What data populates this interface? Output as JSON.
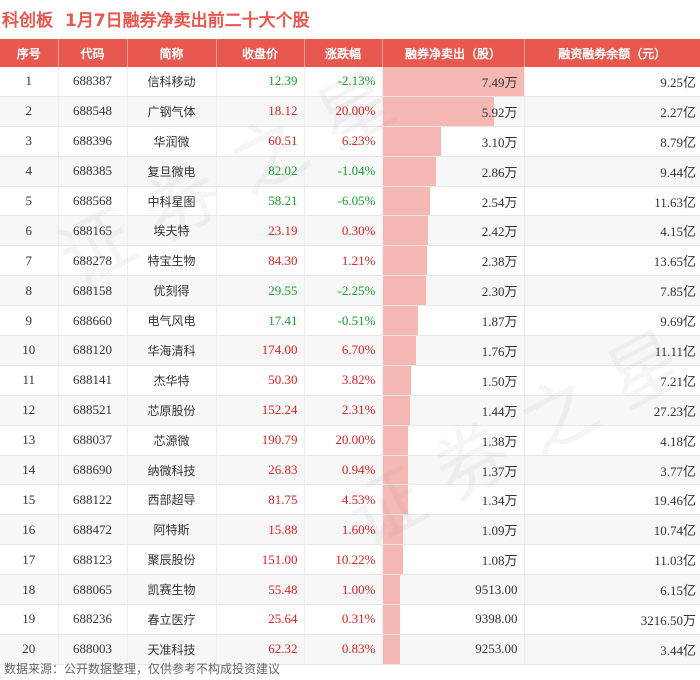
{
  "header": {
    "brand": "科创板",
    "title": "1月7日融券净卖出前二十大个股"
  },
  "columns": [
    "序号",
    "代码",
    "简称",
    "收盘价",
    "涨跌幅",
    "融券净卖出（股）",
    "融资融券余额（元）"
  ],
  "rows": [
    {
      "idx": "1",
      "code": "688387",
      "name": "信科移动",
      "price": "12.39",
      "chg": "-2.13%",
      "net": "7.49万",
      "net_value": 74900,
      "bal": "9.25亿"
    },
    {
      "idx": "2",
      "code": "688548",
      "name": "广钢气体",
      "price": "18.12",
      "chg": "20.00%",
      "net": "5.92万",
      "net_value": 59200,
      "bal": "2.27亿"
    },
    {
      "idx": "3",
      "code": "688396",
      "name": "华润微",
      "price": "60.51",
      "chg": "6.23%",
      "net": "3.10万",
      "net_value": 31000,
      "bal": "8.79亿"
    },
    {
      "idx": "4",
      "code": "688385",
      "name": "复旦微电",
      "price": "82.02",
      "chg": "-1.04%",
      "net": "2.86万",
      "net_value": 28600,
      "bal": "9.44亿"
    },
    {
      "idx": "5",
      "code": "688568",
      "name": "中科星图",
      "price": "58.21",
      "chg": "-6.05%",
      "net": "2.54万",
      "net_value": 25400,
      "bal": "11.63亿"
    },
    {
      "idx": "6",
      "code": "688165",
      "name": "埃夫特",
      "price": "23.19",
      "chg": "0.30%",
      "net": "2.42万",
      "net_value": 24200,
      "bal": "4.15亿"
    },
    {
      "idx": "7",
      "code": "688278",
      "name": "特宝生物",
      "price": "84.30",
      "chg": "1.21%",
      "net": "2.38万",
      "net_value": 23800,
      "bal": "13.65亿"
    },
    {
      "idx": "8",
      "code": "688158",
      "name": "优刻得",
      "price": "29.55",
      "chg": "-2.25%",
      "net": "2.30万",
      "net_value": 23000,
      "bal": "7.85亿"
    },
    {
      "idx": "9",
      "code": "688660",
      "name": "电气风电",
      "price": "17.41",
      "chg": "-0.51%",
      "net": "1.87万",
      "net_value": 18700,
      "bal": "9.69亿"
    },
    {
      "idx": "10",
      "code": "688120",
      "name": "华海清科",
      "price": "174.00",
      "chg": "6.70%",
      "net": "1.76万",
      "net_value": 17600,
      "bal": "11.11亿"
    },
    {
      "idx": "11",
      "code": "688141",
      "name": "杰华特",
      "price": "50.30",
      "chg": "3.82%",
      "net": "1.50万",
      "net_value": 15000,
      "bal": "7.21亿"
    },
    {
      "idx": "12",
      "code": "688521",
      "name": "芯原股份",
      "price": "152.24",
      "chg": "2.31%",
      "net": "1.44万",
      "net_value": 14400,
      "bal": "27.23亿"
    },
    {
      "idx": "13",
      "code": "688037",
      "name": "芯源微",
      "price": "190.79",
      "chg": "20.00%",
      "net": "1.38万",
      "net_value": 13800,
      "bal": "4.18亿"
    },
    {
      "idx": "14",
      "code": "688690",
      "name": "纳微科技",
      "price": "26.83",
      "chg": "0.94%",
      "net": "1.37万",
      "net_value": 13700,
      "bal": "3.77亿"
    },
    {
      "idx": "15",
      "code": "688122",
      "name": "西部超导",
      "price": "81.75",
      "chg": "4.53%",
      "net": "1.34万",
      "net_value": 13400,
      "bal": "19.46亿"
    },
    {
      "idx": "16",
      "code": "688472",
      "name": "阿特斯",
      "price": "15.88",
      "chg": "1.60%",
      "net": "1.09万",
      "net_value": 10900,
      "bal": "10.74亿"
    },
    {
      "idx": "17",
      "code": "688123",
      "name": "聚辰股份",
      "price": "151.00",
      "chg": "10.22%",
      "net": "1.08万",
      "net_value": 10800,
      "bal": "11.03亿"
    },
    {
      "idx": "18",
      "code": "688065",
      "name": "凯赛生物",
      "price": "55.48",
      "chg": "1.00%",
      "net": "9513.00",
      "net_value": 9513,
      "bal": "6.15亿"
    },
    {
      "idx": "19",
      "code": "688236",
      "name": "春立医疗",
      "price": "25.64",
      "chg": "0.31%",
      "net": "9398.00",
      "net_value": 9398,
      "bal": "3216.50万"
    },
    {
      "idx": "20",
      "code": "688003",
      "name": "天准科技",
      "price": "62.32",
      "chg": "0.83%",
      "net": "9253.00",
      "net_value": 9253,
      "bal": "3.44亿"
    }
  ],
  "colors": {
    "accent": "#e8584f",
    "bar": "#f6b8b3",
    "up": "#e02020",
    "down": "#159d2e"
  },
  "footer": "数据来源：公开数据整理，仅供参考不构成投资建议"
}
